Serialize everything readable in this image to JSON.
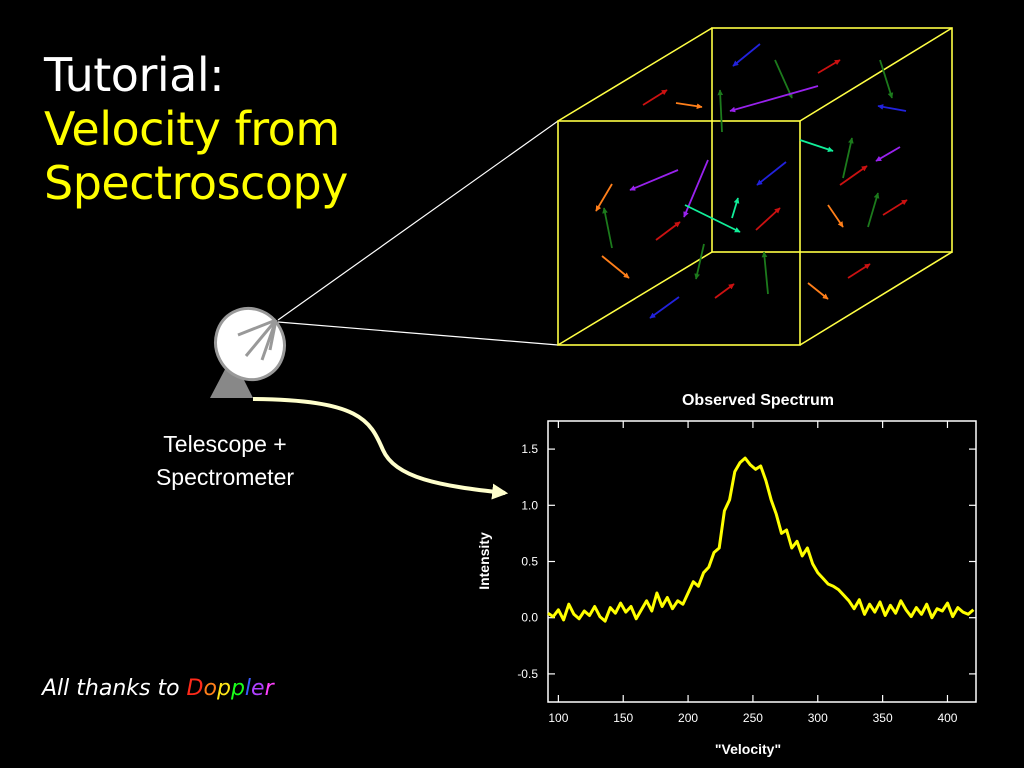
{
  "slide": {
    "title_line1": "Tutorial:",
    "title_line2": "Velocity from",
    "title_line3": "Spectroscopy",
    "title_color": "#ffffff",
    "subtitle_color": "#ffff00",
    "telescope_label_line1": "Telescope +",
    "telescope_label_line2": "Spectrometer",
    "footer_prefix": "All thanks to ",
    "footer_letters": [
      {
        "ch": "D",
        "color": "#ff2a1a"
      },
      {
        "ch": "o",
        "color": "#ff7f1a"
      },
      {
        "ch": "p",
        "color": "#ffe61a"
      },
      {
        "ch": "p",
        "color": "#1aff1a"
      },
      {
        "ch": "l",
        "color": "#3a5aff"
      },
      {
        "ch": "e",
        "color": "#b040ff"
      },
      {
        "ch": "r",
        "color": "#ff40ff"
      }
    ]
  },
  "icons": {
    "dish": "satellite-dish-icon",
    "arrow": "curved-arrow-icon",
    "cube": "gas-cube-icon"
  },
  "colors": {
    "cube": "#ffff44",
    "beam": "#ffffff",
    "spectrum": "#ffff00",
    "velocity_arrows": [
      "#cc1111",
      "#ff7f1a",
      "#1c7a1c",
      "#2222dd",
      "#9922ee",
      "#11ee99"
    ]
  },
  "chart_data": {
    "type": "line",
    "title": "Observed Spectrum",
    "xlabel": "\"Velocity\"",
    "ylabel": "Intensity",
    "xlim": [
      92,
      422
    ],
    "ylim": [
      -0.75,
      1.75
    ],
    "xticks": [
      100,
      150,
      200,
      250,
      300,
      350,
      400
    ],
    "yticks": [
      -0.5,
      0.0,
      0.5,
      1.0,
      1.5
    ],
    "ytick_labels": [
      "-0.5",
      "0.0",
      "0.5",
      "1.0",
      "1.5"
    ],
    "series": [
      {
        "x": [
          92,
          96,
          100,
          104,
          108,
          112,
          116,
          120,
          124,
          128,
          132,
          136,
          140,
          144,
          148,
          152,
          156,
          160,
          164,
          168,
          172,
          176,
          180,
          184,
          188,
          192,
          196,
          200,
          204,
          208,
          212,
          216,
          220,
          224,
          228,
          232,
          236,
          240,
          244,
          248,
          252,
          256,
          260,
          264,
          268,
          272,
          276,
          280,
          284,
          288,
          292,
          296,
          300,
          304,
          308,
          312,
          316,
          320,
          324,
          328,
          332,
          336,
          340,
          344,
          348,
          352,
          356,
          360,
          364,
          368,
          372,
          376,
          380,
          384,
          388,
          392,
          396,
          400,
          404,
          408,
          412,
          416,
          420
        ],
        "y": [
          0.04,
          0.01,
          0.07,
          -0.02,
          0.12,
          0.03,
          -0.01,
          0.06,
          0.02,
          0.1,
          0.01,
          -0.03,
          0.09,
          0.04,
          0.13,
          0.05,
          0.1,
          -0.01,
          0.07,
          0.15,
          0.06,
          0.22,
          0.1,
          0.18,
          0.08,
          0.15,
          0.12,
          0.22,
          0.32,
          0.28,
          0.4,
          0.45,
          0.58,
          0.62,
          0.95,
          1.05,
          1.3,
          1.38,
          1.42,
          1.36,
          1.32,
          1.35,
          1.22,
          1.05,
          0.92,
          0.75,
          0.78,
          0.62,
          0.68,
          0.55,
          0.62,
          0.48,
          0.4,
          0.35,
          0.3,
          0.28,
          0.25,
          0.2,
          0.15,
          0.08,
          0.16,
          0.03,
          0.12,
          0.05,
          0.14,
          0.02,
          0.11,
          0.04,
          0.15,
          0.07,
          0.01,
          0.09,
          0.03,
          0.12,
          0.0,
          0.08,
          0.06,
          0.13,
          0.01,
          0.09,
          0.05,
          0.03,
          0.07
        ]
      }
    ],
    "legend": "none",
    "grid": false
  }
}
